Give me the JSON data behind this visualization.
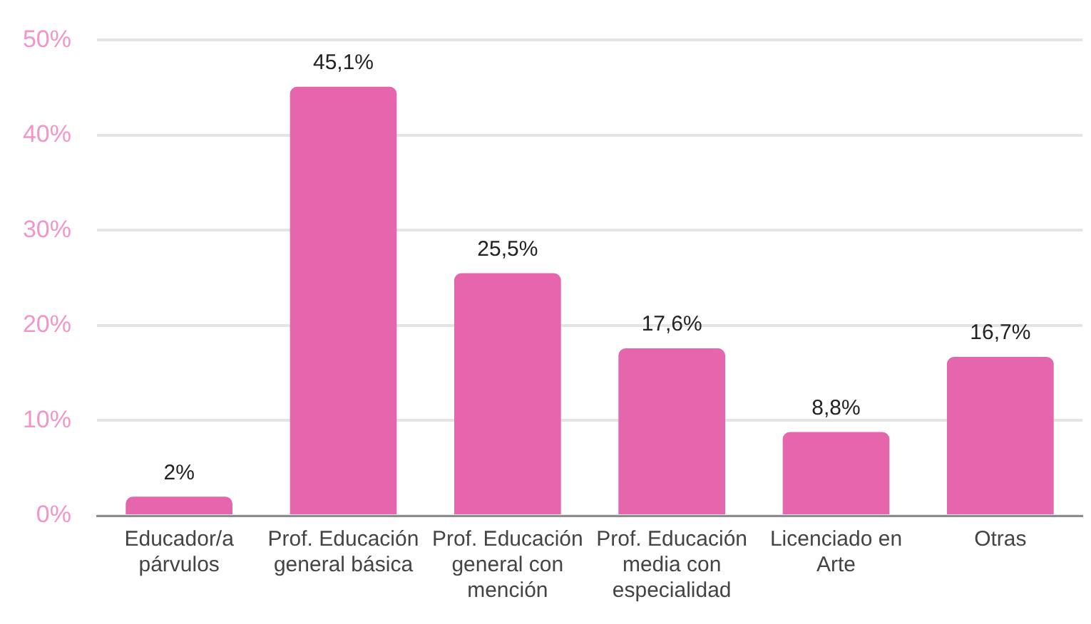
{
  "chart_data": {
    "type": "bar",
    "categories": [
      "Educador/a párvulos",
      "Prof. Educación general básica",
      "Prof. Educación general con mención",
      "Prof. Educación media con especialidad",
      "Licenciado en Arte",
      "Otras"
    ],
    "values": [
      2,
      45.1,
      25.5,
      17.6,
      8.8,
      16.7
    ],
    "value_labels": [
      "2%",
      "45,1%",
      "25,5%",
      "17,6%",
      "8,8%",
      "16,7%"
    ],
    "color": "#e566ad",
    "ylim": [
      0,
      50
    ],
    "yticks": [
      {
        "value": 0,
        "label": "0%"
      },
      {
        "value": 10,
        "label": "10%"
      },
      {
        "value": 20,
        "label": "20%"
      },
      {
        "value": 30,
        "label": "30%"
      },
      {
        "value": 40,
        "label": "40%"
      },
      {
        "value": 50,
        "label": "50%"
      }
    ],
    "grid": "y"
  }
}
